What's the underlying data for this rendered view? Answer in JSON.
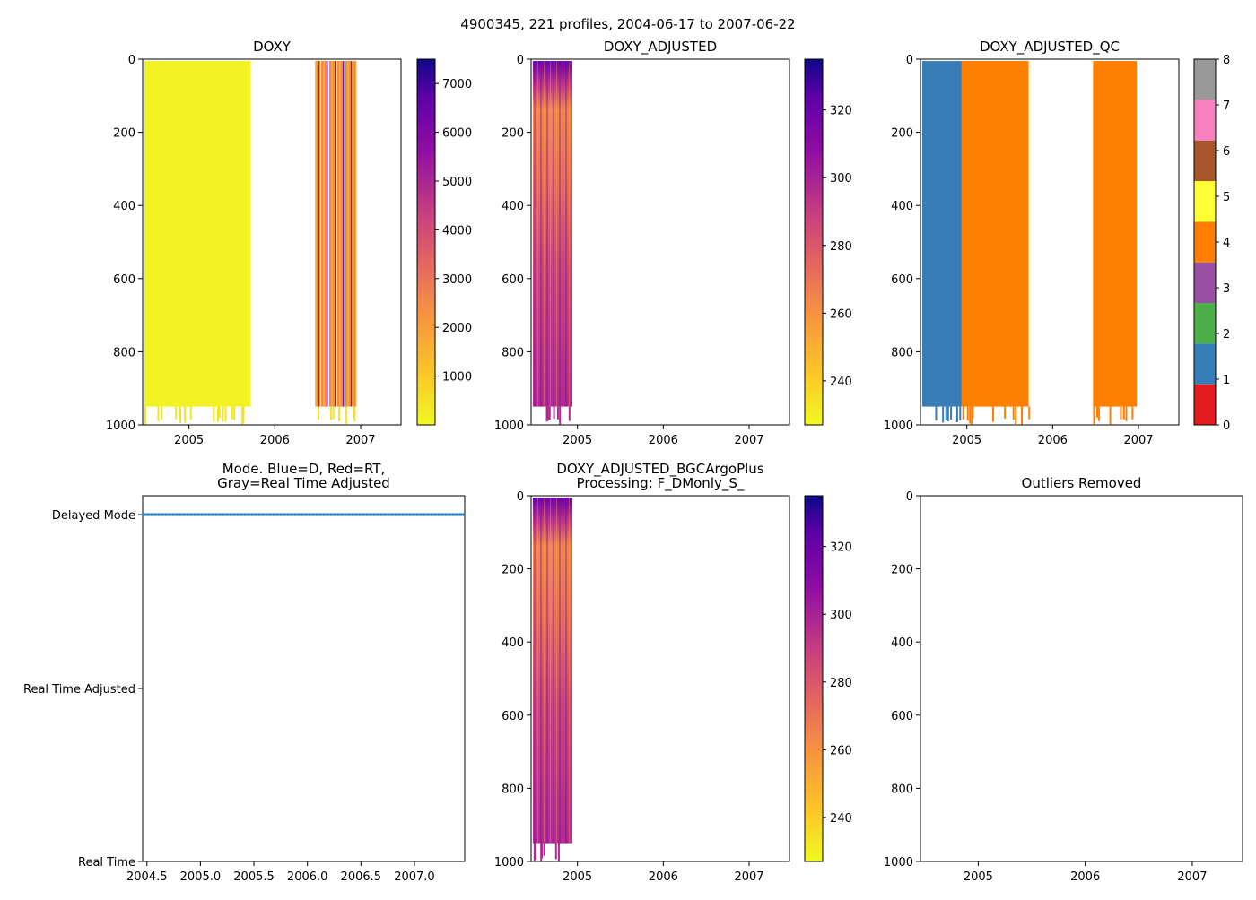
{
  "suptitle": "4900345, 221 profiles, 2004-06-17 to 2007-06-22",
  "chart_data": [
    {
      "id": "doxy",
      "type": "heatmap",
      "title": "DOXY",
      "xlabel": "",
      "ylabel": "",
      "xlim": [
        2004.46,
        2007.47
      ],
      "ylim": [
        1000,
        0
      ],
      "xticks": [
        "2005",
        "2006",
        "2007"
      ],
      "yticks": [
        "0",
        "200",
        "400",
        "600",
        "800",
        "1000"
      ],
      "colormap": "plasma_r",
      "colorbar": {
        "min": 0,
        "max": 7500,
        "ticks": [
          "1000",
          "2000",
          "3000",
          "4000",
          "5000",
          "6000",
          "7000"
        ]
      },
      "segments": [
        {
          "x0": 2004.48,
          "x1": 2005.72,
          "value": 150
        },
        {
          "x0": 2006.47,
          "x1": 2006.95,
          "value": 2500
        }
      ]
    },
    {
      "id": "doxy_adjusted",
      "type": "heatmap",
      "title": "DOXY_ADJUSTED",
      "xlabel": "",
      "ylabel": "",
      "xlim": [
        2004.46,
        2007.47
      ],
      "ylim": [
        1000,
        0
      ],
      "xticks": [
        "2005",
        "2006",
        "2007"
      ],
      "yticks": [
        "0",
        "200",
        "400",
        "600",
        "800",
        "1000"
      ],
      "colormap": "plasma_r",
      "colorbar": {
        "min": 227,
        "max": 335,
        "ticks": [
          "240",
          "260",
          "280",
          "300",
          "320"
        ]
      },
      "segments": [
        {
          "x0": 2004.48,
          "x1": 2004.94,
          "value": 285
        }
      ]
    },
    {
      "id": "doxy_adjusted_qc",
      "type": "heatmap",
      "title": "DOXY_ADJUSTED_QC",
      "xlabel": "",
      "ylabel": "",
      "xlim": [
        2004.46,
        2007.47
      ],
      "ylim": [
        1000,
        0
      ],
      "xticks": [
        "2005",
        "2006",
        "2007"
      ],
      "yticks": [
        "0",
        "200",
        "400",
        "600",
        "800",
        "1000"
      ],
      "colorbar": {
        "min": 0,
        "max": 8,
        "ticks": [
          "0",
          "1",
          "2",
          "3",
          "4",
          "5",
          "6",
          "7",
          "8"
        ],
        "colors": [
          "#e41a1c",
          "#377eb8",
          "#4daf4a",
          "#984ea3",
          "#ff7f00",
          "#ffff33",
          "#a65628",
          "#f781bf",
          "#999999"
        ]
      },
      "segments": [
        {
          "x0": 2004.48,
          "x1": 2004.94,
          "qc": 1
        },
        {
          "x0": 2004.94,
          "x1": 2005.72,
          "qc": 4
        },
        {
          "x0": 2006.47,
          "x1": 2006.98,
          "qc": 4
        }
      ]
    },
    {
      "id": "mode",
      "type": "scatter",
      "title_lines": [
        "Mode. Blue=D, Red=RT,",
        "Gray=Real Time Adjusted"
      ],
      "xlabel": "",
      "ylabel": "",
      "xlim": [
        2004.46,
        2007.47
      ],
      "xticks": [
        "2004.5",
        "2005.0",
        "2005.5",
        "2006.0",
        "2006.5",
        "2007.0"
      ],
      "yticks": [
        "Real Time",
        "Real Time Adjusted",
        "Delayed Mode"
      ],
      "series": [
        {
          "name": "D",
          "color": "#1f77b4",
          "x_start": 2004.46,
          "x_end": 2007.47,
          "y": "Delayed Mode"
        }
      ]
    },
    {
      "id": "doxy_adjusted_bgcargoplus",
      "type": "heatmap",
      "title_lines": [
        "DOXY_ADJUSTED_BGCArgoPlus",
        "Processing: F_DMonly_S_"
      ],
      "xlabel": "",
      "ylabel": "",
      "xlim": [
        2004.46,
        2007.47
      ],
      "ylim": [
        1000,
        0
      ],
      "xticks": [
        "2005",
        "2006",
        "2007"
      ],
      "yticks": [
        "0",
        "200",
        "400",
        "600",
        "800",
        "1000"
      ],
      "colormap": "plasma_r",
      "colorbar": {
        "min": 227,
        "max": 335,
        "ticks": [
          "240",
          "260",
          "280",
          "300",
          "320"
        ]
      },
      "segments": [
        {
          "x0": 2004.48,
          "x1": 2004.94,
          "value": 285
        }
      ]
    },
    {
      "id": "outliers",
      "type": "scatter",
      "title": "Outliers Removed",
      "xlabel": "",
      "ylabel": "",
      "xlim": [
        2004.46,
        2007.47
      ],
      "ylim": [
        1000,
        0
      ],
      "xticks": [
        "2005",
        "2006",
        "2007"
      ],
      "yticks": [
        "0",
        "200",
        "400",
        "600",
        "800",
        "1000"
      ],
      "series": []
    }
  ]
}
